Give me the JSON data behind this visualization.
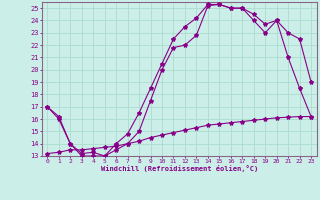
{
  "xlabel": "Windchill (Refroidissement éolien,°C)",
  "bg_color": "#cceee8",
  "grid_color": "#aaddcc",
  "line_color": "#880088",
  "spine_color": "#886688",
  "xlim": [
    -0.5,
    23.5
  ],
  "ylim": [
    13,
    25.5
  ],
  "xticks": [
    0,
    1,
    2,
    3,
    4,
    5,
    6,
    7,
    8,
    9,
    10,
    11,
    12,
    13,
    14,
    15,
    16,
    17,
    18,
    19,
    20,
    21,
    22,
    23
  ],
  "yticks": [
    13,
    14,
    15,
    16,
    17,
    18,
    19,
    20,
    21,
    22,
    23,
    24,
    25
  ],
  "series1_x": [
    0,
    1,
    2,
    3,
    4,
    5,
    6,
    7,
    8,
    9,
    10,
    11,
    12,
    13,
    14,
    15,
    16,
    17,
    18,
    19,
    20,
    21,
    22,
    23
  ],
  "series1_y": [
    17.0,
    16.0,
    14.0,
    13.0,
    13.0,
    13.0,
    13.5,
    14.0,
    15.0,
    17.5,
    20.0,
    21.8,
    22.0,
    22.8,
    25.2,
    25.3,
    25.0,
    25.0,
    24.0,
    23.0,
    24.0,
    21.0,
    18.5,
    16.2
  ],
  "series2_x": [
    0,
    1,
    2,
    3,
    4,
    5,
    6,
    7,
    8,
    9,
    10,
    11,
    12,
    13,
    14,
    15,
    16,
    17,
    18,
    19,
    20,
    21,
    22,
    23
  ],
  "series2_y": [
    17.0,
    16.2,
    14.0,
    13.2,
    13.3,
    13.0,
    14.0,
    14.8,
    16.5,
    18.5,
    20.5,
    22.5,
    23.5,
    24.2,
    25.3,
    25.3,
    25.0,
    25.0,
    24.5,
    23.7,
    24.0,
    23.0,
    22.5,
    19.0
  ],
  "series3_x": [
    0,
    1,
    2,
    3,
    4,
    5,
    6,
    7,
    8,
    9,
    10,
    11,
    12,
    13,
    14,
    15,
    16,
    17,
    18,
    19,
    20,
    21,
    22,
    23
  ],
  "series3_y": [
    13.2,
    13.3,
    13.5,
    13.5,
    13.6,
    13.7,
    13.8,
    14.0,
    14.2,
    14.5,
    14.7,
    14.9,
    15.1,
    15.3,
    15.5,
    15.6,
    15.7,
    15.8,
    15.9,
    16.0,
    16.1,
    16.15,
    16.2,
    16.2
  ]
}
